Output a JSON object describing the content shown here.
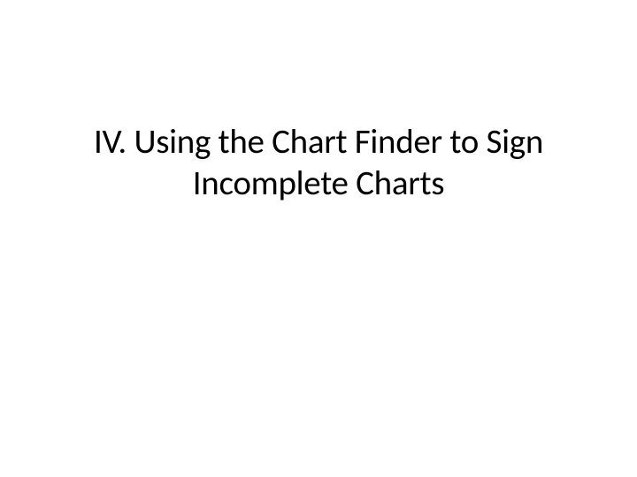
{
  "slide": {
    "title_line1": "IV. Using the Chart Finder to Sign",
    "title_line2": "Incomplete Charts",
    "background_color": "#ffffff",
    "text_color": "#000000",
    "title_fontsize": 39,
    "title_fontweight": 400,
    "font_family": "Calibri"
  }
}
